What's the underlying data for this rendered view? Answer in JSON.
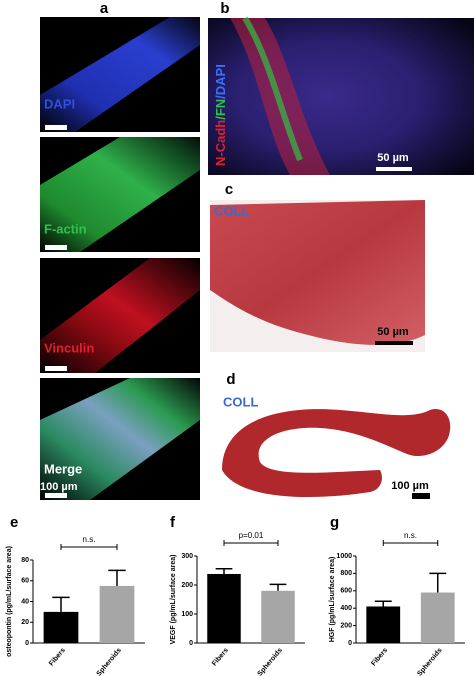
{
  "panels": {
    "a": {
      "letter": "a",
      "labels": [
        "DAPI",
        "F-actin",
        "Vinculin",
        "Merge"
      ],
      "scale": "100 µm"
    },
    "b": {
      "letter": "b",
      "label_parts": [
        "N-Cadh",
        "/FN",
        "/DAPI"
      ],
      "scale": "50 µm"
    },
    "c": {
      "letter": "c",
      "label": "COLL",
      "scale": "50 µm"
    },
    "d": {
      "letter": "d",
      "label": "COLL",
      "scale": "100 µm"
    }
  },
  "chart_data": [
    {
      "type": "bar",
      "letter": "e",
      "y_label": "osteopontin (pg/mL/surface area)",
      "categories": [
        "Fibers",
        "Spheroids"
      ],
      "values": [
        30,
        55
      ],
      "errors": [
        14,
        15
      ],
      "colors": [
        "#000000",
        "#a6a6a6"
      ],
      "ylim": [
        0,
        80
      ],
      "yticks": [
        0,
        20,
        40,
        60,
        80
      ],
      "annotation": "n.s."
    },
    {
      "type": "bar",
      "letter": "f",
      "y_label": "VEGF (pg/mL/surface area)",
      "categories": [
        "Fibers",
        "Spheroids"
      ],
      "values": [
        238,
        180
      ],
      "errors": [
        18,
        22
      ],
      "colors": [
        "#000000",
        "#a6a6a6"
      ],
      "ylim": [
        0,
        300
      ],
      "yticks": [
        0,
        100,
        200,
        300
      ],
      "annotation": "p=0.01"
    },
    {
      "type": "bar",
      "letter": "g",
      "y_label": "HGF (pg/mL/surface area)",
      "categories": [
        "Fibers",
        "Spheroids"
      ],
      "values": [
        420,
        580
      ],
      "errors": [
        60,
        220
      ],
      "colors": [
        "#000000",
        "#a6a6a6"
      ],
      "ylim": [
        0,
        1000
      ],
      "yticks": [
        0,
        200,
        400,
        600,
        800,
        1000
      ],
      "annotation": "n.s."
    }
  ]
}
